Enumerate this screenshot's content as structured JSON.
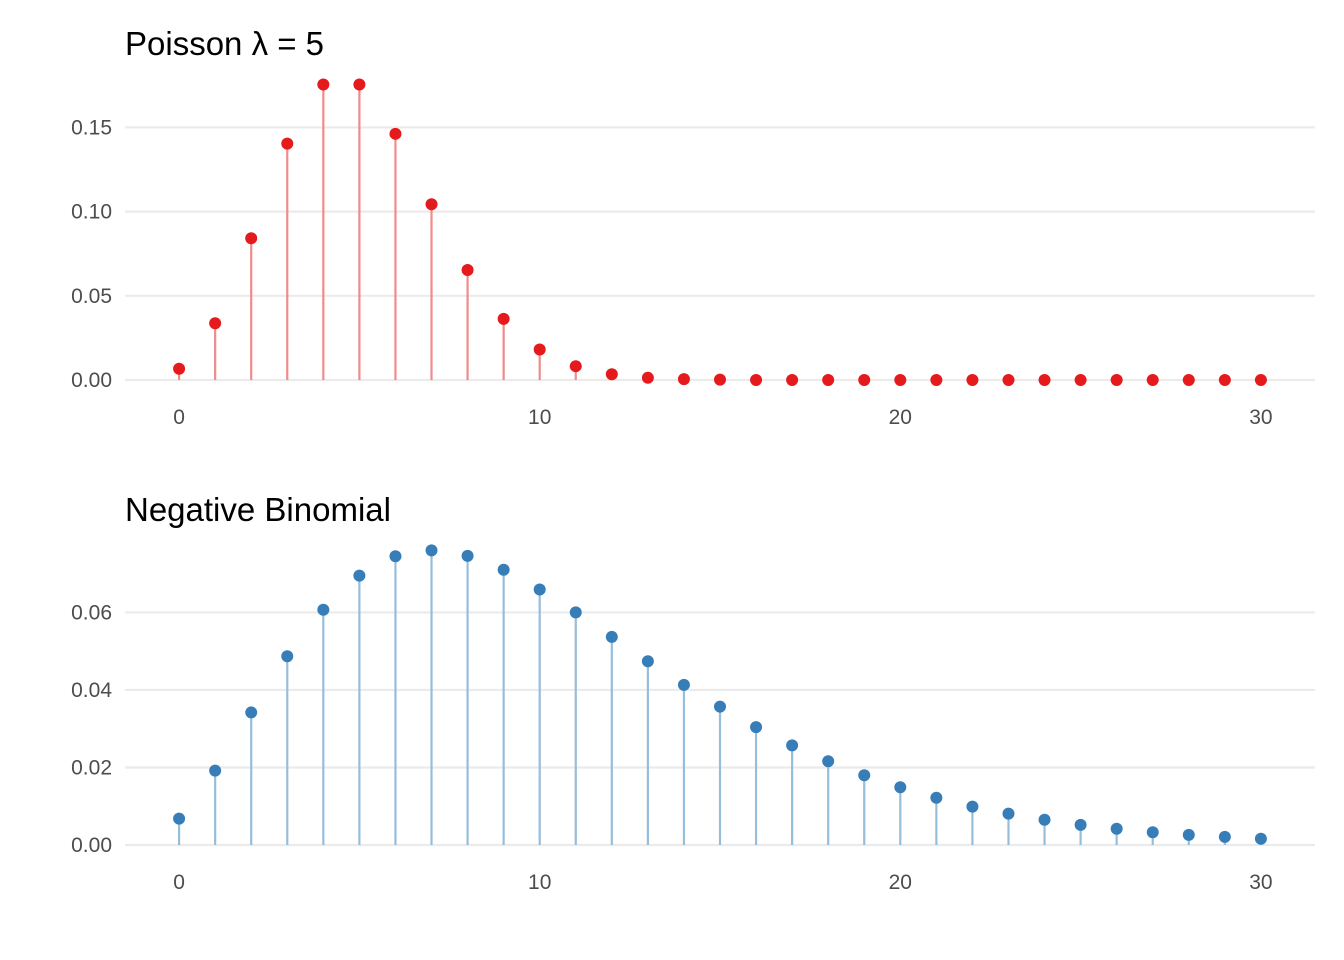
{
  "chart_data": [
    {
      "type": "lollipop",
      "title": "Poisson λ = 5",
      "xlabel": "",
      "ylabel": "",
      "x_ticks": [
        0,
        10,
        20,
        30
      ],
      "y_ticks": [
        "0.00",
        "0.05",
        "0.10",
        "0.15"
      ],
      "xlim": [
        -1.5,
        31.5
      ],
      "ylim": [
        0,
        0.1841
      ],
      "grid": "horizontal-major",
      "colors": {
        "point": "#E41A1C",
        "stem": "#F08A8B"
      },
      "x": [
        0,
        1,
        2,
        3,
        4,
        5,
        6,
        7,
        8,
        9,
        10,
        11,
        12,
        13,
        14,
        15,
        16,
        17,
        18,
        19,
        20,
        21,
        22,
        23,
        24,
        25,
        26,
        27,
        28,
        29,
        30
      ],
      "values": [
        0.0067,
        0.0337,
        0.0842,
        0.1404,
        0.1755,
        0.1755,
        0.1462,
        0.1044,
        0.0653,
        0.0363,
        0.0181,
        0.0082,
        0.0034,
        0.0013,
        0.0005,
        0.0002,
        0.0,
        0.0,
        0.0,
        0.0,
        0.0,
        0.0,
        0.0,
        0.0,
        0.0,
        0.0,
        0.0,
        0.0,
        0.0,
        0.0,
        0.0
      ]
    },
    {
      "type": "lollipop",
      "title": "Negative Binomial",
      "xlabel": "",
      "ylabel": "",
      "x_ticks": [
        0,
        10,
        20,
        30
      ],
      "y_ticks": [
        "0.00",
        "0.02",
        "0.04",
        "0.06"
      ],
      "xlim": [
        -1.5,
        31.5
      ],
      "ylim": [
        0,
        0.0792
      ],
      "grid": "horizontal-major",
      "colors": {
        "point": "#377EB8",
        "stem": "#96BEDB"
      },
      "x": [
        0,
        1,
        2,
        3,
        4,
        5,
        6,
        7,
        8,
        9,
        10,
        11,
        12,
        13,
        14,
        15,
        16,
        17,
        18,
        19,
        20,
        21,
        22,
        23,
        24,
        25,
        26,
        27,
        28,
        29,
        30
      ],
      "values": [
        0.0068,
        0.0192,
        0.0342,
        0.0487,
        0.0607,
        0.0695,
        0.0745,
        0.076,
        0.0746,
        0.071,
        0.0659,
        0.06,
        0.0537,
        0.0474,
        0.0413,
        0.0357,
        0.0304,
        0.0257,
        0.0216,
        0.018,
        0.0149,
        0.0122,
        0.0099,
        0.0081,
        0.0065,
        0.0052,
        0.0042,
        0.0033,
        0.0026,
        0.0021,
        0.0016
      ]
    }
  ]
}
